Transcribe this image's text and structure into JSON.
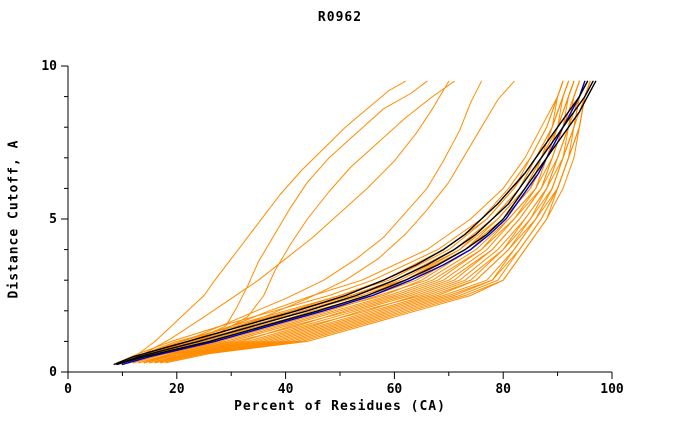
{
  "chart_data": {
    "type": "line",
    "title": "R0962",
    "xlabel": "Percent of Residues (CA)",
    "ylabel": "Distance Cutoff, A",
    "xlim": [
      0,
      100
    ],
    "ylim": [
      0,
      10
    ],
    "x_ticks_major": [
      0,
      20,
      40,
      60,
      80,
      100
    ],
    "x_tick_labels": [
      "0",
      "20",
      "40",
      "60",
      "80",
      "100"
    ],
    "y_ticks_major": [
      0,
      5,
      10
    ],
    "y_tick_labels": [
      "0",
      "5",
      "10"
    ],
    "x_minor_step": 10,
    "y_minor_step": 1,
    "grid": false,
    "legend": "none",
    "colors": {
      "orange": "#ff8c00",
      "black": "#000000",
      "blue": "#0000cc"
    },
    "y_grids": {
      "cluster": [
        0.3,
        0.6,
        1,
        1.5,
        2,
        2.5,
        3,
        4,
        5,
        6,
        7,
        8,
        9,
        9.5
      ],
      "main": [
        0.25,
        0.5,
        1,
        1.5,
        2,
        2.5,
        3,
        3.5,
        4,
        4.5,
        5,
        5.5,
        6,
        6.5,
        7,
        7.5,
        8,
        8.5,
        9,
        9.5
      ]
    },
    "series": [
      {
        "name": "model-orange-01",
        "color": "orange",
        "grid": "cluster",
        "x": [
          9,
          13,
          19,
          28,
          38,
          48,
          56,
          68,
          76,
          81,
          85,
          88,
          90,
          91
        ]
      },
      {
        "name": "model-orange-02",
        "color": "orange",
        "grid": "cluster",
        "x": [
          9,
          14,
          21,
          30,
          40,
          50,
          58,
          69,
          77,
          82,
          85,
          88,
          90,
          91
        ]
      },
      {
        "name": "model-orange-03",
        "color": "orange",
        "grid": "cluster",
        "x": [
          10,
          14,
          20,
          31,
          41,
          50,
          59,
          70,
          77,
          82,
          86,
          89,
          90,
          91
        ]
      },
      {
        "name": "model-orange-04",
        "color": "orange",
        "grid": "cluster",
        "x": [
          10,
          15,
          22,
          32,
          41,
          52,
          60,
          71,
          78,
          83,
          86,
          89,
          91,
          92
        ]
      },
      {
        "name": "model-orange-05",
        "color": "orange",
        "grid": "cluster",
        "x": [
          10,
          15,
          23,
          34,
          43,
          53,
          61,
          72,
          78,
          83,
          86,
          89,
          91,
          92
        ]
      },
      {
        "name": "model-orange-06",
        "color": "orange",
        "grid": "cluster",
        "x": [
          11,
          16,
          24,
          33,
          44,
          54,
          62,
          72,
          79,
          84,
          87,
          89,
          91,
          92
        ]
      },
      {
        "name": "model-orange-07",
        "color": "orange",
        "grid": "cluster",
        "x": [
          11,
          16,
          25,
          35,
          46,
          55,
          63,
          73,
          79,
          84,
          87,
          90,
          91,
          92
        ]
      },
      {
        "name": "model-orange-08",
        "color": "orange",
        "grid": "cluster",
        "x": [
          11,
          17,
          26,
          36,
          45,
          56,
          64,
          74,
          80,
          85,
          87,
          90,
          92,
          93
        ]
      },
      {
        "name": "model-orange-09",
        "color": "orange",
        "grid": "cluster",
        "x": [
          12,
          17,
          27,
          37,
          47,
          58,
          65,
          74,
          80,
          85,
          88,
          90,
          92,
          93
        ]
      },
      {
        "name": "model-orange-10",
        "color": "orange",
        "grid": "cluster",
        "x": [
          12,
          18,
          28,
          38,
          48,
          57,
          66,
          75,
          81,
          86,
          88,
          90,
          92,
          93
        ]
      },
      {
        "name": "model-orange-11",
        "color": "orange",
        "grid": "cluster",
        "x": [
          12,
          18,
          29,
          39,
          49,
          59,
          67,
          76,
          81,
          86,
          88,
          91,
          92,
          93
        ]
      },
      {
        "name": "model-orange-12",
        "color": "orange",
        "grid": "cluster",
        "x": [
          13,
          19,
          30,
          40,
          50,
          60,
          68,
          76,
          82,
          86,
          89,
          91,
          93,
          94
        ]
      },
      {
        "name": "model-orange-13",
        "color": "orange",
        "grid": "cluster",
        "x": [
          13,
          19,
          31,
          42,
          51,
          61,
          69,
          77,
          82,
          87,
          89,
          91,
          93,
          94
        ]
      },
      {
        "name": "model-orange-14",
        "color": "orange",
        "grid": "cluster",
        "x": [
          13,
          20,
          32,
          41,
          52,
          62,
          70,
          78,
          83,
          87,
          89,
          91,
          93,
          94
        ]
      },
      {
        "name": "model-orange-15",
        "color": "orange",
        "grid": "cluster",
        "x": [
          14,
          20,
          33,
          43,
          53,
          63,
          71,
          78,
          83,
          87,
          90,
          92,
          93,
          94
        ]
      },
      {
        "name": "model-orange-16",
        "color": "orange",
        "grid": "cluster",
        "x": [
          14,
          21,
          34,
          44,
          55,
          64,
          72,
          79,
          84,
          88,
          90,
          92,
          93,
          94
        ]
      },
      {
        "name": "model-orange-17",
        "color": "orange",
        "grid": "cluster",
        "x": [
          14,
          21,
          35,
          45,
          54,
          65,
          73,
          80,
          84,
          88,
          90,
          92,
          94,
          95
        ]
      },
      {
        "name": "model-orange-18",
        "color": "orange",
        "grid": "cluster",
        "x": [
          15,
          22,
          36,
          46,
          56,
          66,
          74,
          80,
          85,
          88,
          91,
          92,
          94,
          95
        ]
      },
      {
        "name": "model-orange-19",
        "color": "orange",
        "grid": "cluster",
        "x": [
          15,
          22,
          37,
          47,
          57,
          67,
          75,
          81,
          85,
          89,
          91,
          93,
          94,
          95
        ]
      },
      {
        "name": "model-orange-20",
        "color": "orange",
        "grid": "cluster",
        "x": [
          15,
          23,
          38,
          48,
          58,
          68,
          75,
          81,
          86,
          89,
          91,
          93,
          94,
          95
        ]
      },
      {
        "name": "model-orange-21",
        "color": "orange",
        "grid": "cluster",
        "x": [
          16,
          23,
          39,
          49,
          59,
          69,
          77,
          82,
          86,
          89,
          91,
          93,
          94,
          95
        ]
      },
      {
        "name": "model-orange-22",
        "color": "orange",
        "grid": "cluster",
        "x": [
          16,
          24,
          40,
          50,
          60,
          70,
          78,
          82,
          86,
          90,
          92,
          93,
          95,
          96
        ]
      },
      {
        "name": "model-orange-23",
        "color": "orange",
        "grid": "cluster",
        "x": [
          16,
          24,
          41,
          51,
          61,
          71,
          78,
          83,
          87,
          90,
          92,
          94,
          95,
          96
        ]
      },
      {
        "name": "model-orange-24",
        "color": "orange",
        "grid": "cluster",
        "x": [
          17,
          25,
          42,
          52,
          62,
          72,
          79,
          83,
          87,
          90,
          92,
          94,
          95,
          96
        ]
      },
      {
        "name": "model-orange-25",
        "color": "orange",
        "grid": "cluster",
        "x": [
          17,
          25,
          43,
          53,
          63,
          73,
          80,
          84,
          88,
          90,
          92,
          94,
          95,
          96
        ]
      },
      {
        "name": "model-orange-26",
        "color": "orange",
        "grid": "cluster",
        "x": [
          18,
          26,
          44,
          54,
          64,
          74,
          80,
          84,
          88,
          91,
          93,
          94,
          95,
          96
        ]
      },
      {
        "name": "model-orange-27",
        "color": "orange",
        "grid": "cluster",
        "x": [
          14,
          19,
          26,
          34,
          42,
          52,
          62,
          73,
          80,
          85,
          88,
          90,
          92,
          93
        ]
      },
      {
        "name": "model-orange-28",
        "color": "orange",
        "grid": "cluster",
        "x": [
          12,
          16,
          22,
          30,
          37,
          45,
          54,
          66,
          74,
          80,
          84,
          87,
          90,
          91
        ]
      },
      {
        "name": "model-orange-outlier-1",
        "color": "orange",
        "points": [
          [
            10,
            0.3
          ],
          [
            13,
            0.6
          ],
          [
            16,
            1
          ],
          [
            19,
            1.5
          ],
          [
            22,
            2
          ],
          [
            25,
            2.5
          ],
          [
            27,
            3
          ],
          [
            30,
            3.7
          ],
          [
            33,
            4.4
          ],
          [
            36,
            5.1
          ],
          [
            39,
            5.8
          ],
          [
            43,
            6.6
          ],
          [
            47,
            7.3
          ],
          [
            51,
            8
          ],
          [
            55,
            8.6
          ],
          [
            59,
            9.2
          ],
          [
            62,
            9.5
          ]
        ]
      },
      {
        "name": "model-orange-outlier-2",
        "color": "orange",
        "points": [
          [
            10,
            0.3
          ],
          [
            14,
            0.6
          ],
          [
            19,
            1.1
          ],
          [
            25,
            1.8
          ],
          [
            30,
            2.4
          ],
          [
            35,
            3
          ],
          [
            40,
            3.7
          ],
          [
            45,
            4.4
          ],
          [
            50,
            5.2
          ],
          [
            55,
            6
          ],
          [
            60,
            6.9
          ],
          [
            64,
            7.8
          ],
          [
            67,
            8.6
          ],
          [
            70,
            9.5
          ]
        ]
      },
      {
        "name": "model-orange-outlier-3",
        "color": "orange",
        "points": [
          [
            11,
            0.3
          ],
          [
            17,
            0.7
          ],
          [
            24,
            1.1
          ],
          [
            29,
            1.5
          ],
          [
            31,
            2.1
          ],
          [
            33,
            2.8
          ],
          [
            35,
            3.6
          ],
          [
            38,
            4.5
          ],
          [
            41,
            5.4
          ],
          [
            44,
            6.2
          ],
          [
            48,
            7
          ],
          [
            53,
            7.8
          ],
          [
            58,
            8.6
          ],
          [
            63,
            9.1
          ],
          [
            66,
            9.5
          ]
        ]
      },
      {
        "name": "model-orange-outlier-4",
        "color": "orange",
        "points": [
          [
            12,
            0.3
          ],
          [
            20,
            0.8
          ],
          [
            28,
            1.3
          ],
          [
            33,
            1.8
          ],
          [
            36,
            2.5
          ],
          [
            38,
            3.3
          ],
          [
            41,
            4.2
          ],
          [
            44,
            5
          ],
          [
            48,
            5.9
          ],
          [
            52,
            6.7
          ],
          [
            57,
            7.5
          ],
          [
            62,
            8.3
          ],
          [
            67,
            9
          ],
          [
            71,
            9.5
          ]
        ]
      },
      {
        "name": "model-orange-outlier-5",
        "color": "orange",
        "points": [
          [
            11,
            0.3
          ],
          [
            16,
            0.7
          ],
          [
            24,
            1.2
          ],
          [
            32,
            1.8
          ],
          [
            40,
            2.4
          ],
          [
            47,
            3
          ],
          [
            53,
            3.7
          ],
          [
            58,
            4.4
          ],
          [
            62,
            5.2
          ],
          [
            66,
            6
          ],
          [
            69,
            6.9
          ],
          [
            72,
            7.9
          ],
          [
            74,
            8.8
          ],
          [
            76,
            9.5
          ]
        ]
      },
      {
        "name": "model-orange-outlier-6",
        "color": "orange",
        "points": [
          [
            12,
            0.3
          ],
          [
            18,
            0.7
          ],
          [
            27,
            1.2
          ],
          [
            36,
            1.8
          ],
          [
            44,
            2.4
          ],
          [
            51,
            3
          ],
          [
            57,
            3.7
          ],
          [
            62,
            4.5
          ],
          [
            66,
            5.3
          ],
          [
            70,
            6.2
          ],
          [
            73,
            7.1
          ],
          [
            76,
            8
          ],
          [
            79,
            8.9
          ],
          [
            82,
            9.5
          ]
        ]
      },
      {
        "name": "model-blue-1",
        "color": "blue",
        "grid": "main",
        "x": [
          10,
          15,
          27,
          37,
          47,
          56,
          63,
          69,
          74,
          77.5,
          80.5,
          82.5,
          84.5,
          86.5,
          88,
          89.5,
          91,
          92.5,
          94,
          95
        ]
      },
      {
        "name": "model-black-1",
        "color": "black",
        "grid": "main",
        "x": [
          9,
          13,
          24,
          34,
          44,
          53,
          60,
          66,
          71,
          75,
          78,
          81,
          83,
          85,
          87,
          89,
          91,
          93,
          95,
          96.5
        ]
      },
      {
        "name": "model-black-2",
        "color": "black",
        "grid": "main",
        "x": [
          9,
          14,
          26,
          36,
          46,
          55,
          62,
          68,
          73,
          77,
          80,
          82,
          84,
          86,
          88,
          90,
          92,
          94,
          95.5,
          97
        ]
      },
      {
        "name": "model-black-3",
        "color": "black",
        "grid": "main",
        "x": [
          8.5,
          12,
          22,
          32,
          42,
          51,
          58,
          64,
          69,
          73,
          76,
          79,
          81.5,
          84,
          86,
          88,
          90,
          92,
          94,
          95.5
        ]
      }
    ]
  }
}
